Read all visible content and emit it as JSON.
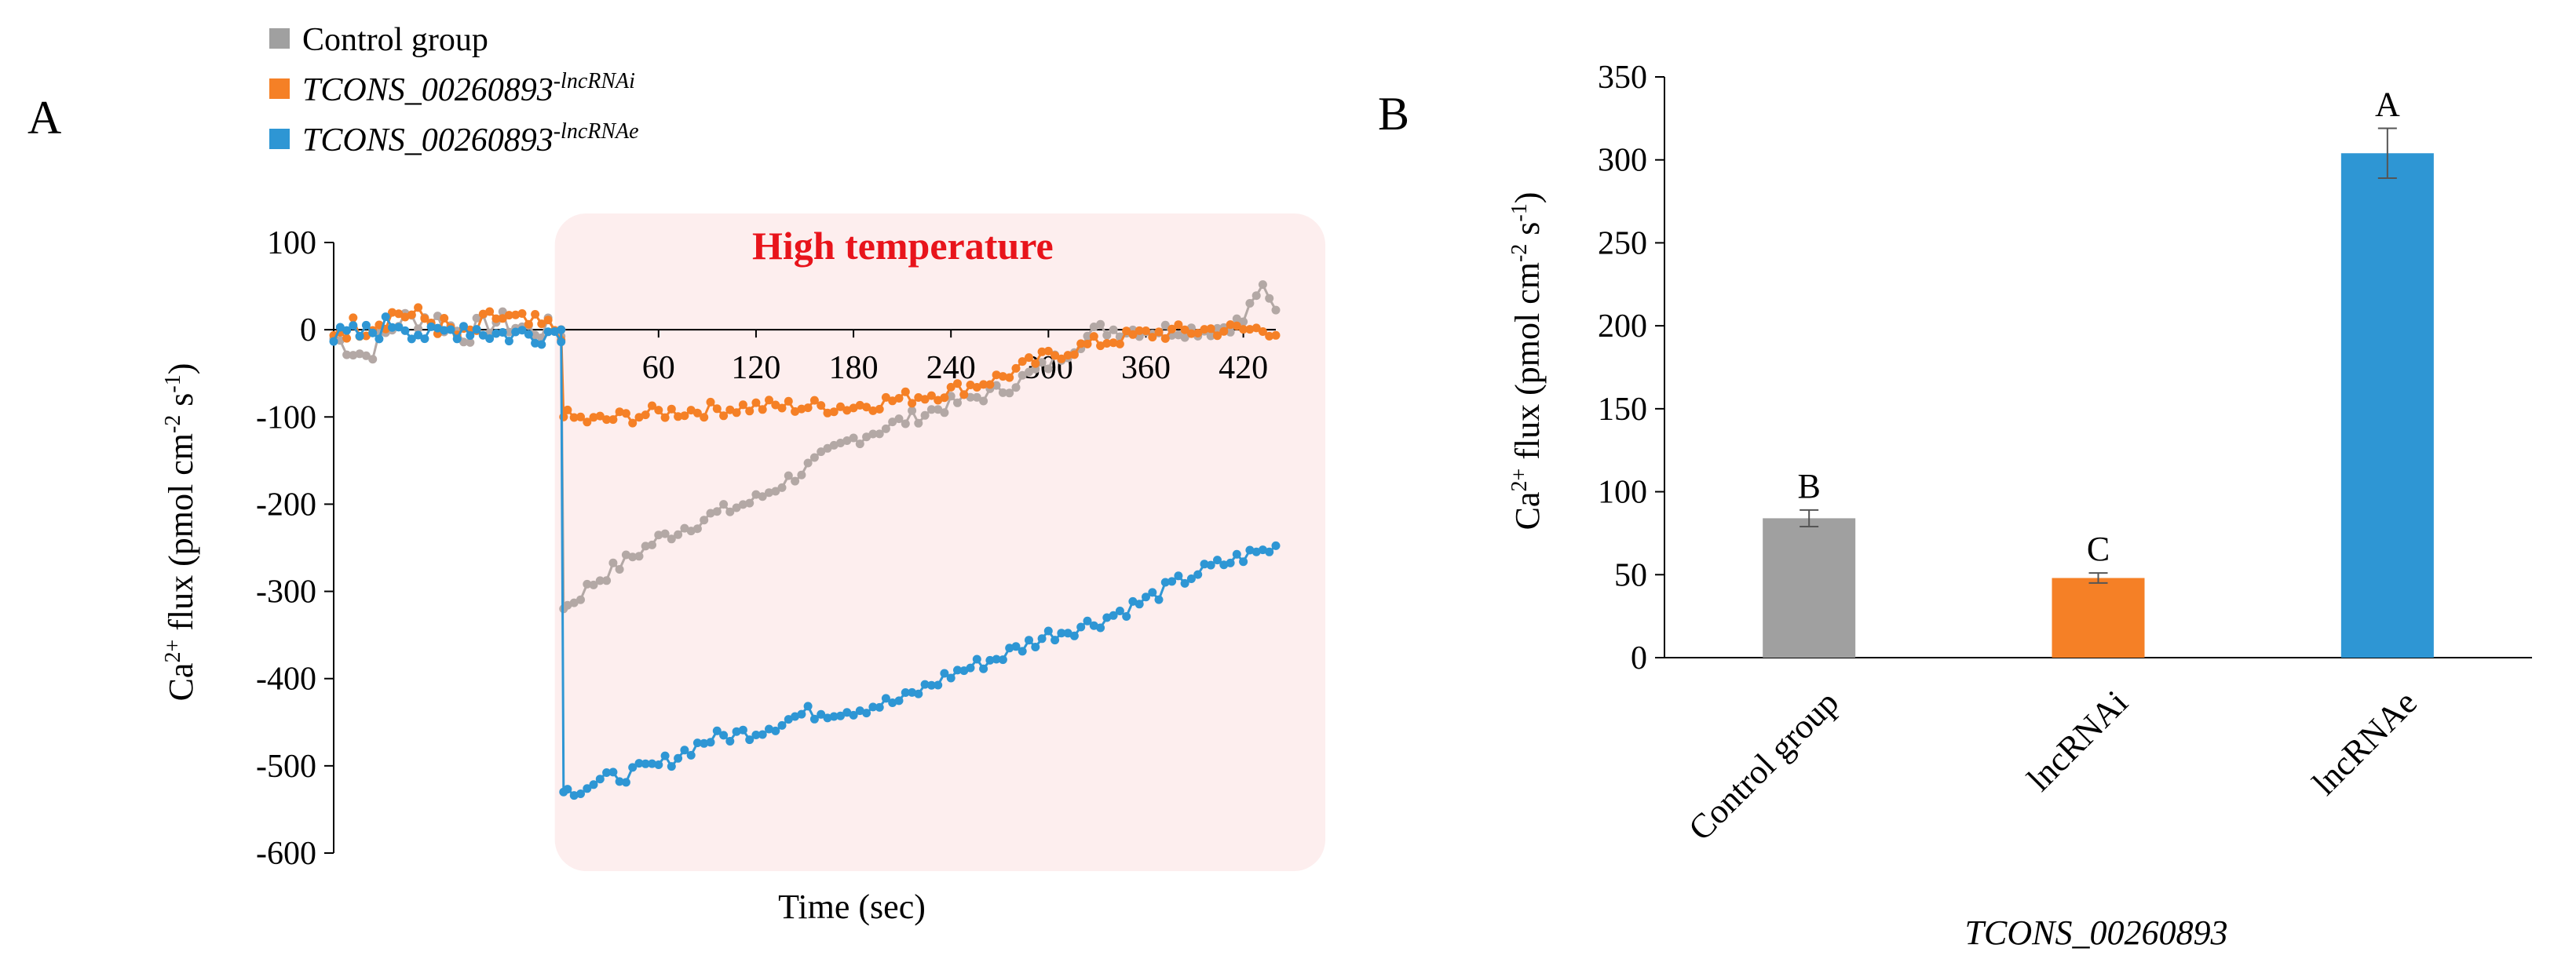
{
  "figure": {
    "panel_a_label": "A",
    "panel_b_label": "B"
  },
  "colors": {
    "control": "#A0A0A0",
    "control_line": "#B3A8A5",
    "lncrnai": "#F58026",
    "lncrnae": "#2E96D4",
    "heat_region": "#FDEEEE",
    "annotation": "#E8141B"
  },
  "chart_data": [
    {
      "type": "line",
      "panel": "A",
      "title": "",
      "annotation": "High temperature",
      "annotation_range": [
        0,
        440
      ],
      "xlabel": "Time (sec)",
      "ylabel_prefix": "Ca",
      "ylabel_sup1": "2+",
      "ylabel_mid": " flux (pmol cm",
      "ylabel_sup2": "-2",
      "ylabel_mid2": " s",
      "ylabel_sup3": "-1",
      "ylabel_end": ")",
      "xlim": [
        -140,
        440
      ],
      "ylim": [
        -600,
        100
      ],
      "xticks": [
        60,
        120,
        180,
        240,
        300,
        360,
        420
      ],
      "yticks": [
        100,
        0,
        -100,
        -200,
        -300,
        -400,
        -500,
        -600
      ],
      "legend": {
        "position": "top-left",
        "entries": [
          {
            "key": "control",
            "label": "Control group",
            "italic": false,
            "sup": ""
          },
          {
            "key": "lncrnai",
            "label": "TCONS_00260893",
            "italic": true,
            "sup": "-lncRNAi"
          },
          {
            "key": "lncrnae",
            "label": "TCONS_00260893",
            "italic": true,
            "sup": "-lncRNAe"
          }
        ]
      },
      "series": [
        {
          "name": "Control group",
          "key": "control_line",
          "anchors": [
            [
              -140,
              -10
            ],
            [
              -120,
              -30
            ],
            [
              -100,
              10
            ],
            [
              -80,
              15
            ],
            [
              -60,
              -5
            ],
            [
              -40,
              10
            ],
            [
              -20,
              0
            ],
            [
              0,
              0
            ],
            [
              2,
              -320
            ],
            [
              20,
              -290
            ],
            [
              60,
              -240
            ],
            [
              90,
              -215
            ],
            [
              120,
              -195
            ],
            [
              150,
              -160
            ],
            [
              180,
              -125
            ],
            [
              210,
              -105
            ],
            [
              240,
              -85
            ],
            [
              270,
              -70
            ],
            [
              300,
              -40
            ],
            [
              330,
              0
            ],
            [
              360,
              0
            ],
            [
              400,
              0
            ],
            [
              420,
              10
            ],
            [
              430,
              50
            ],
            [
              440,
              20
            ]
          ]
        },
        {
          "name": "TCONS_00260893-lncRNAi",
          "key": "lncrnai",
          "anchors": [
            [
              -140,
              0
            ],
            [
              -120,
              5
            ],
            [
              -100,
              20
            ],
            [
              -80,
              10
            ],
            [
              -60,
              -10
            ],
            [
              -40,
              15
            ],
            [
              -20,
              5
            ],
            [
              0,
              0
            ],
            [
              2,
              -100
            ],
            [
              20,
              -105
            ],
            [
              60,
              -95
            ],
            [
              120,
              -88
            ],
            [
              180,
              -88
            ],
            [
              240,
              -70
            ],
            [
              270,
              -55
            ],
            [
              300,
              -30
            ],
            [
              330,
              -15
            ],
            [
              360,
              -5
            ],
            [
              400,
              0
            ],
            [
              440,
              0
            ]
          ]
        },
        {
          "name": "TCONS_00260893-lncRNAe",
          "key": "lncrnae",
          "anchors": [
            [
              -140,
              -10
            ],
            [
              -120,
              -5
            ],
            [
              -100,
              10
            ],
            [
              -80,
              -10
            ],
            [
              -60,
              5
            ],
            [
              -40,
              -5
            ],
            [
              -20,
              -5
            ],
            [
              0,
              0
            ],
            [
              2,
              -530
            ],
            [
              30,
              -515
            ],
            [
              60,
              -500
            ],
            [
              90,
              -470
            ],
            [
              120,
              -460
            ],
            [
              150,
              -440
            ],
            [
              180,
              -435
            ],
            [
              210,
              -425
            ],
            [
              240,
              -395
            ],
            [
              270,
              -375
            ],
            [
              300,
              -350
            ],
            [
              330,
              -335
            ],
            [
              360,
              -310
            ],
            [
              390,
              -280
            ],
            [
              420,
              -260
            ],
            [
              440,
              -250
            ]
          ]
        }
      ]
    },
    {
      "type": "bar",
      "panel": "B",
      "ylabel_prefix": "Ca",
      "ylabel_sup1": "2+",
      "ylabel_mid": " flux (pmol cm",
      "ylabel_sup2": "-2",
      "ylabel_mid2": " s",
      "ylabel_sup3": "-1",
      "ylabel_end": ")",
      "xlabel": "TCONS_00260893",
      "ylim": [
        0,
        350
      ],
      "yticks": [
        0,
        50,
        100,
        150,
        200,
        250,
        300,
        350
      ],
      "categories": [
        "Control group",
        "lncRNAi",
        "lncRNAe"
      ],
      "values": [
        84,
        48,
        304
      ],
      "errors": [
        5,
        3,
        15
      ],
      "letters": [
        "B",
        "C",
        "A"
      ],
      "bar_keys": [
        "control",
        "lncrnai",
        "lncrnae"
      ]
    }
  ]
}
